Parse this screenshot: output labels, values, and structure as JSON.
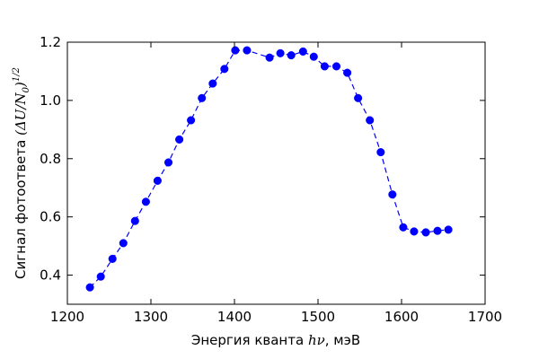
{
  "chart_data": {
    "type": "line",
    "xlabel_text": "Энергия кванта",
    "xlabel_math": "hν",
    "xlabel_unit": ", мэВ",
    "ylabel_text": "Сигнал фотоответа",
    "ylabel_math": "(ΔU/N",
    "ylabel_sub": "0",
    "ylabel_close": ")",
    "ylabel_sup": "1/2",
    "xlim": [
      1200,
      1700
    ],
    "ylim": [
      0.3,
      1.2
    ],
    "xticks": [
      1200,
      1300,
      1400,
      1500,
      1600,
      1700
    ],
    "yticks": [
      0.4,
      0.6,
      0.8,
      1.0,
      1.2
    ],
    "grid": false,
    "line_color": "#0000ff",
    "line_style": "dashed",
    "marker": "circle",
    "series": [
      {
        "x": [
          1227,
          1240,
          1254,
          1267,
          1281,
          1294,
          1308,
          1321,
          1334,
          1348,
          1361,
          1374,
          1388,
          1401,
          1415,
          1442,
          1455,
          1468,
          1482,
          1495,
          1508,
          1522,
          1535,
          1548,
          1562,
          1575,
          1589,
          1602,
          1615,
          1629,
          1643,
          1656
        ],
        "y": [
          0.358,
          0.395,
          0.456,
          0.51,
          0.586,
          0.652,
          0.724,
          0.787,
          0.866,
          0.932,
          1.008,
          1.058,
          1.108,
          1.172,
          1.172,
          1.147,
          1.162,
          1.155,
          1.168,
          1.15,
          1.117,
          1.117,
          1.095,
          1.008,
          0.932,
          0.822,
          0.677,
          0.564,
          0.55,
          0.547,
          0.552,
          0.556
        ]
      }
    ]
  }
}
